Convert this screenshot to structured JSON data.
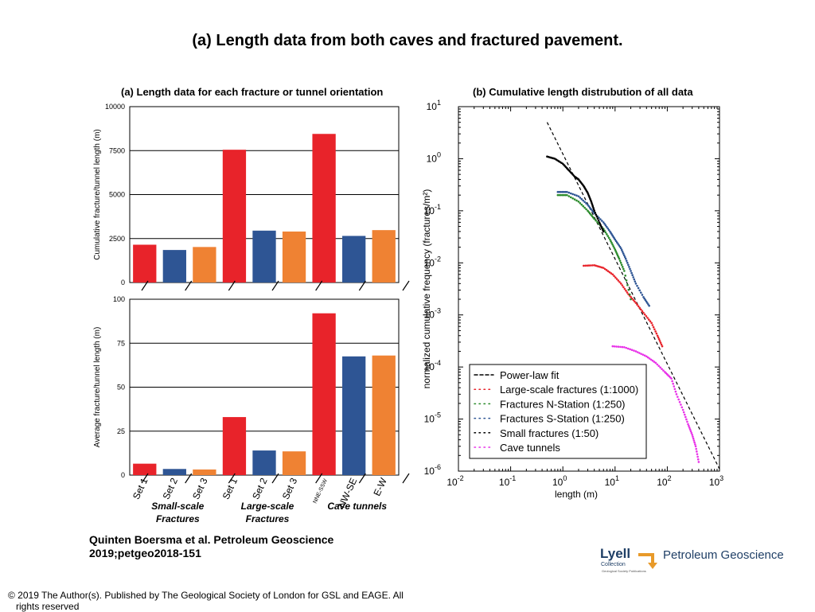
{
  "title": "(a) Length data from both caves and fractured pavement.",
  "citation": [
    "Quinten Boersma et al. Petroleum Geoscience",
    "2019;petgeo2018-151"
  ],
  "copyright": [
    "© 2019 The Author(s). Published by The Geological Society of London for GSL and EAGE. All",
    "rights reserved"
  ],
  "logo": {
    "lyell": "Lyell",
    "collection": "Collection",
    "publisher": "Geological Society Publications",
    "journal": "Petroleum Geoscience"
  },
  "colors": {
    "red": "#e8232a",
    "blue": "#2e5594",
    "orange": "#ef8233",
    "green": "#2a8a2a",
    "magenta": "#e832e8",
    "logo_navy": "#1f3f66",
    "logo_orange": "#e89a2a"
  },
  "chart_data": [
    {
      "type": "bar",
      "panel_title": "(a) Length data for each  fracture or tunnel orientation",
      "ylabel": "Cumulative fracture/tunnel length (m)",
      "ylim": [
        0,
        10000
      ],
      "yticks": [
        "0",
        "2500",
        "5000",
        "7500",
        "10000"
      ],
      "categories": [
        "Set 1",
        "Set 2",
        "Set 3",
        "Set 1",
        "Set 2",
        "Set 3",
        "NNE-SSW",
        "NW-SE",
        "E-W"
      ],
      "values": [
        2150,
        1850,
        2020,
        7550,
        2950,
        2900,
        8450,
        2650,
        2980
      ],
      "bar_colors": [
        "red",
        "blue",
        "orange",
        "red",
        "blue",
        "orange",
        "red",
        "blue",
        "orange"
      ],
      "grid": true
    },
    {
      "type": "bar",
      "ylabel": "Average fracture/tunnel length (m)",
      "ylim": [
        0,
        100
      ],
      "yticks": [
        "0",
        "25",
        "50",
        "75",
        "100"
      ],
      "categories": [
        "Set 1",
        "Set 2",
        "Set 3",
        "Set 1",
        "Set 2",
        "Set 3",
        "NNE-SSW",
        "NW-SE",
        "E-W"
      ],
      "values": [
        6.5,
        3.5,
        3.2,
        33,
        14,
        13.5,
        92,
        67.5,
        68
      ],
      "bar_colors": [
        "red",
        "blue",
        "orange",
        "red",
        "blue",
        "orange",
        "red",
        "blue",
        "orange"
      ],
      "groups": [
        [
          "Small-scale",
          "Fractures"
        ],
        [
          "Large-scale",
          "Fractures"
        ],
        [
          "Cave tunnels"
        ]
      ],
      "grid": true
    },
    {
      "type": "scatter",
      "panel_title": "(b) Cumulative length distrubution of all data",
      "xlabel": "length (m)",
      "ylabel": "normalized cumulative frequency (fractures/m²)",
      "xscale": "log",
      "yscale": "log",
      "xlim": [
        0.01,
        1000
      ],
      "ylim": [
        1e-06,
        10
      ],
      "xticks": [
        "-2",
        "-1",
        "0",
        "1",
        "2",
        "3"
      ],
      "yticks": [
        "1",
        "0",
        "-1",
        "-2",
        "-3",
        "-4",
        "-5",
        "-6"
      ],
      "legend_position": "bottom-left",
      "series": [
        {
          "name": "Power-law fit",
          "style": "dashed",
          "color": "black",
          "x": [
            0.5,
            1000
          ],
          "y": [
            5,
            1.1e-06
          ]
        },
        {
          "name": "Large-scale fractures (1:1000)",
          "color": "red",
          "x": [
            2.5,
            4,
            6,
            9,
            13,
            18,
            25,
            35,
            50,
            65,
            80
          ],
          "y": [
            0.0088,
            0.009,
            0.008,
            0.006,
            0.004,
            0.0025,
            0.0017,
            0.0011,
            0.0007,
            0.0004,
            0.00025
          ]
        },
        {
          "name": "Fractures N-Station (1:250)",
          "color": "green",
          "x": [
            0.8,
            1.2,
            2,
            3,
            4,
            6,
            8,
            10,
            12,
            15,
            20
          ],
          "y": [
            0.2,
            0.2,
            0.15,
            0.1,
            0.07,
            0.045,
            0.028,
            0.018,
            0.012,
            0.007,
            0.002
          ]
        },
        {
          "name": "Fractures S-Station (1:250)",
          "color": "blue",
          "x": [
            0.8,
            1.2,
            2,
            3,
            4,
            6,
            8,
            10,
            13,
            16,
            20,
            25,
            35,
            45
          ],
          "y": [
            0.23,
            0.23,
            0.19,
            0.13,
            0.09,
            0.06,
            0.04,
            0.028,
            0.019,
            0.012,
            0.007,
            0.004,
            0.0022,
            0.0015
          ]
        },
        {
          "name": "Small fractures (1:50)",
          "color": "black",
          "x": [
            0.5,
            0.7,
            1,
            1.3,
            1.7,
            2,
            2.5,
            3,
            3.5,
            4,
            5,
            6
          ],
          "y": [
            1.1,
            1,
            0.8,
            0.6,
            0.45,
            0.4,
            0.3,
            0.22,
            0.15,
            0.1,
            0.06,
            0.04
          ]
        },
        {
          "name": "Cave tunnels",
          "color": "magenta",
          "x": [
            9,
            15,
            25,
            40,
            60,
            90,
            120,
            150,
            200,
            250,
            300,
            350,
            400
          ],
          "y": [
            0.00025,
            0.00024,
            0.0002,
            0.00016,
            0.00012,
            8e-05,
            6e-05,
            3e-05,
            1.5e-05,
            8e-06,
            5e-06,
            3e-06,
            1.5e-06
          ]
        }
      ]
    }
  ]
}
